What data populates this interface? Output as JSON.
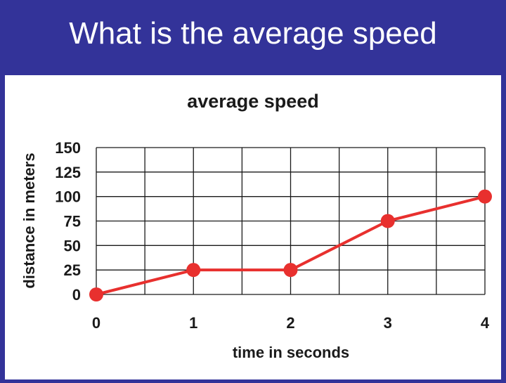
{
  "slide": {
    "title": "What is the average speed"
  },
  "colors": {
    "background": "#333399",
    "panel": "#ffffff",
    "series": "#e8302e",
    "grid": "#1a1a1a"
  },
  "chart_data": {
    "type": "line",
    "title": "average speed",
    "xlabel": "time in seconds",
    "ylabel": "distance in meters",
    "x": [
      0,
      1,
      2,
      3,
      4
    ],
    "y": [
      0,
      25,
      25,
      75,
      100
    ],
    "x_ticks": [
      "0",
      "1",
      "2",
      "3",
      "4"
    ],
    "y_ticks": [
      "0",
      "25",
      "50",
      "75",
      "100",
      "125",
      "150"
    ],
    "xlim": [
      0,
      4
    ],
    "ylim": [
      0,
      150
    ],
    "grid": true,
    "markers": "filled-circle"
  }
}
